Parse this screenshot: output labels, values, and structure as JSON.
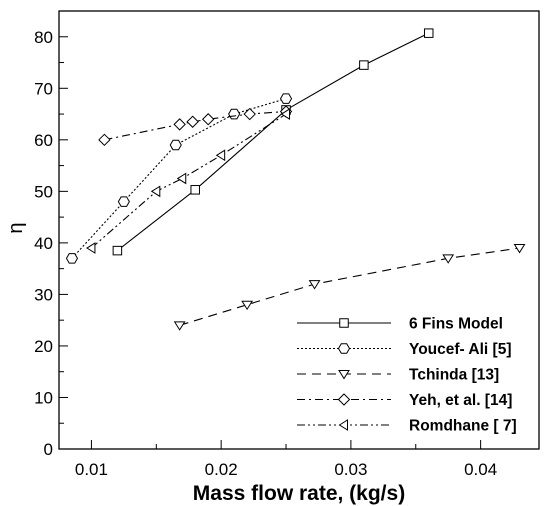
{
  "chart_data": {
    "type": "line",
    "title": "",
    "xlabel": "Mass flow rate, (kg/s)",
    "ylabel": "η",
    "xlim": [
      0.0075,
      0.0445
    ],
    "ylim": [
      0,
      85
    ],
    "x_ticks": [
      "0.01",
      "0.02",
      "0.03",
      "0.04"
    ],
    "y_ticks": [
      "0",
      "10",
      "20",
      "30",
      "40",
      "50",
      "60",
      "70",
      "80"
    ],
    "grid": false,
    "legend_position": "bottom-right",
    "series": [
      {
        "name": "6 Fins Model",
        "marker": "square",
        "dash": "solid",
        "x": [
          0.012,
          0.018,
          0.025,
          0.031,
          0.036
        ],
        "y": [
          38.5,
          50.3,
          65.8,
          74.5,
          80.7
        ]
      },
      {
        "name": "Youcef- Ali [5]",
        "marker": "hexagon",
        "dash": "dotted",
        "x": [
          0.0085,
          0.0125,
          0.0165,
          0.021,
          0.025
        ],
        "y": [
          37,
          48,
          59,
          65,
          68
        ]
      },
      {
        "name": "Tchinda [13]",
        "marker": "triangle-down",
        "dash": "dashed",
        "x": [
          0.0168,
          0.022,
          0.0272,
          0.0375,
          0.043
        ],
        "y": [
          24,
          28,
          32,
          37,
          39
        ]
      },
      {
        "name": "Yeh, et al. [14]",
        "marker": "diamond",
        "dash": "dash-dot",
        "x": [
          0.011,
          0.0168,
          0.0178,
          0.019,
          0.0222,
          0.025
        ],
        "y": [
          60,
          63,
          63.5,
          64,
          65,
          65.5
        ]
      },
      {
        "name": "Romdhane [ 7]",
        "marker": "triangle-left",
        "dash": "dash-dot-dot",
        "x": [
          0.01,
          0.015,
          0.017,
          0.02,
          0.025
        ],
        "y": [
          39,
          50,
          52.5,
          57,
          65
        ]
      }
    ]
  }
}
